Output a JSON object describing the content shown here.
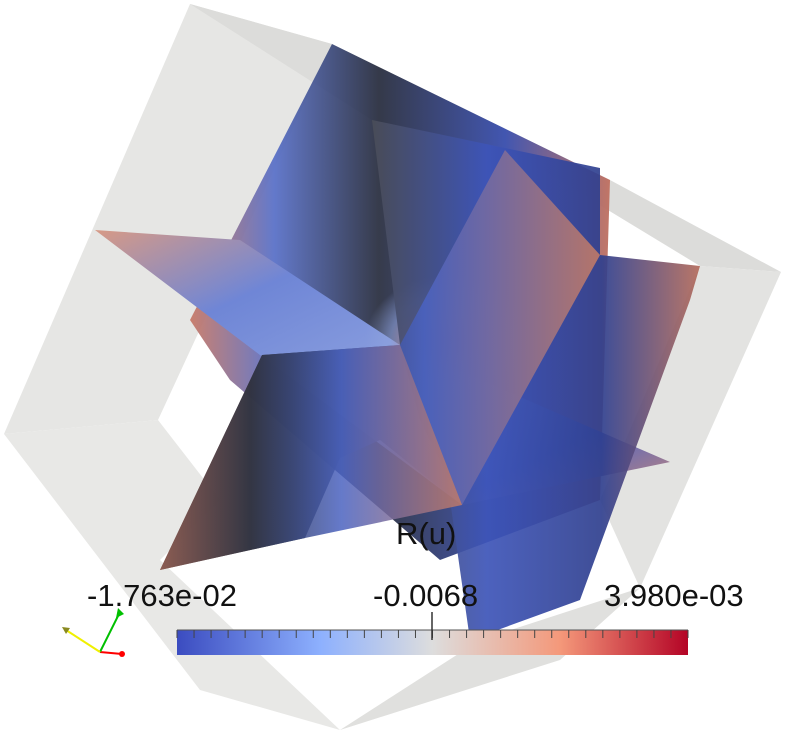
{
  "scalar_bar": {
    "title": "R(u)",
    "min_label": "-1.763e-02",
    "mid_label": "-0.0068",
    "max_label": "3.980e-03",
    "colormap": [
      "#3b4cc0",
      "#8db0fe",
      "#dddddd",
      "#f4987a",
      "#b40426"
    ],
    "tick_count": 30
  },
  "scene": {
    "background": "#ffffff",
    "box_color": "#e2e2e0",
    "field_low_color": "#3b4cc0",
    "field_mid_color": "#2a2f3c",
    "field_high_color": "#b40426"
  },
  "orientation_axes": {
    "x_color": "#ff0000",
    "y_color": "#00c000",
    "z_color": "#f0f000"
  }
}
